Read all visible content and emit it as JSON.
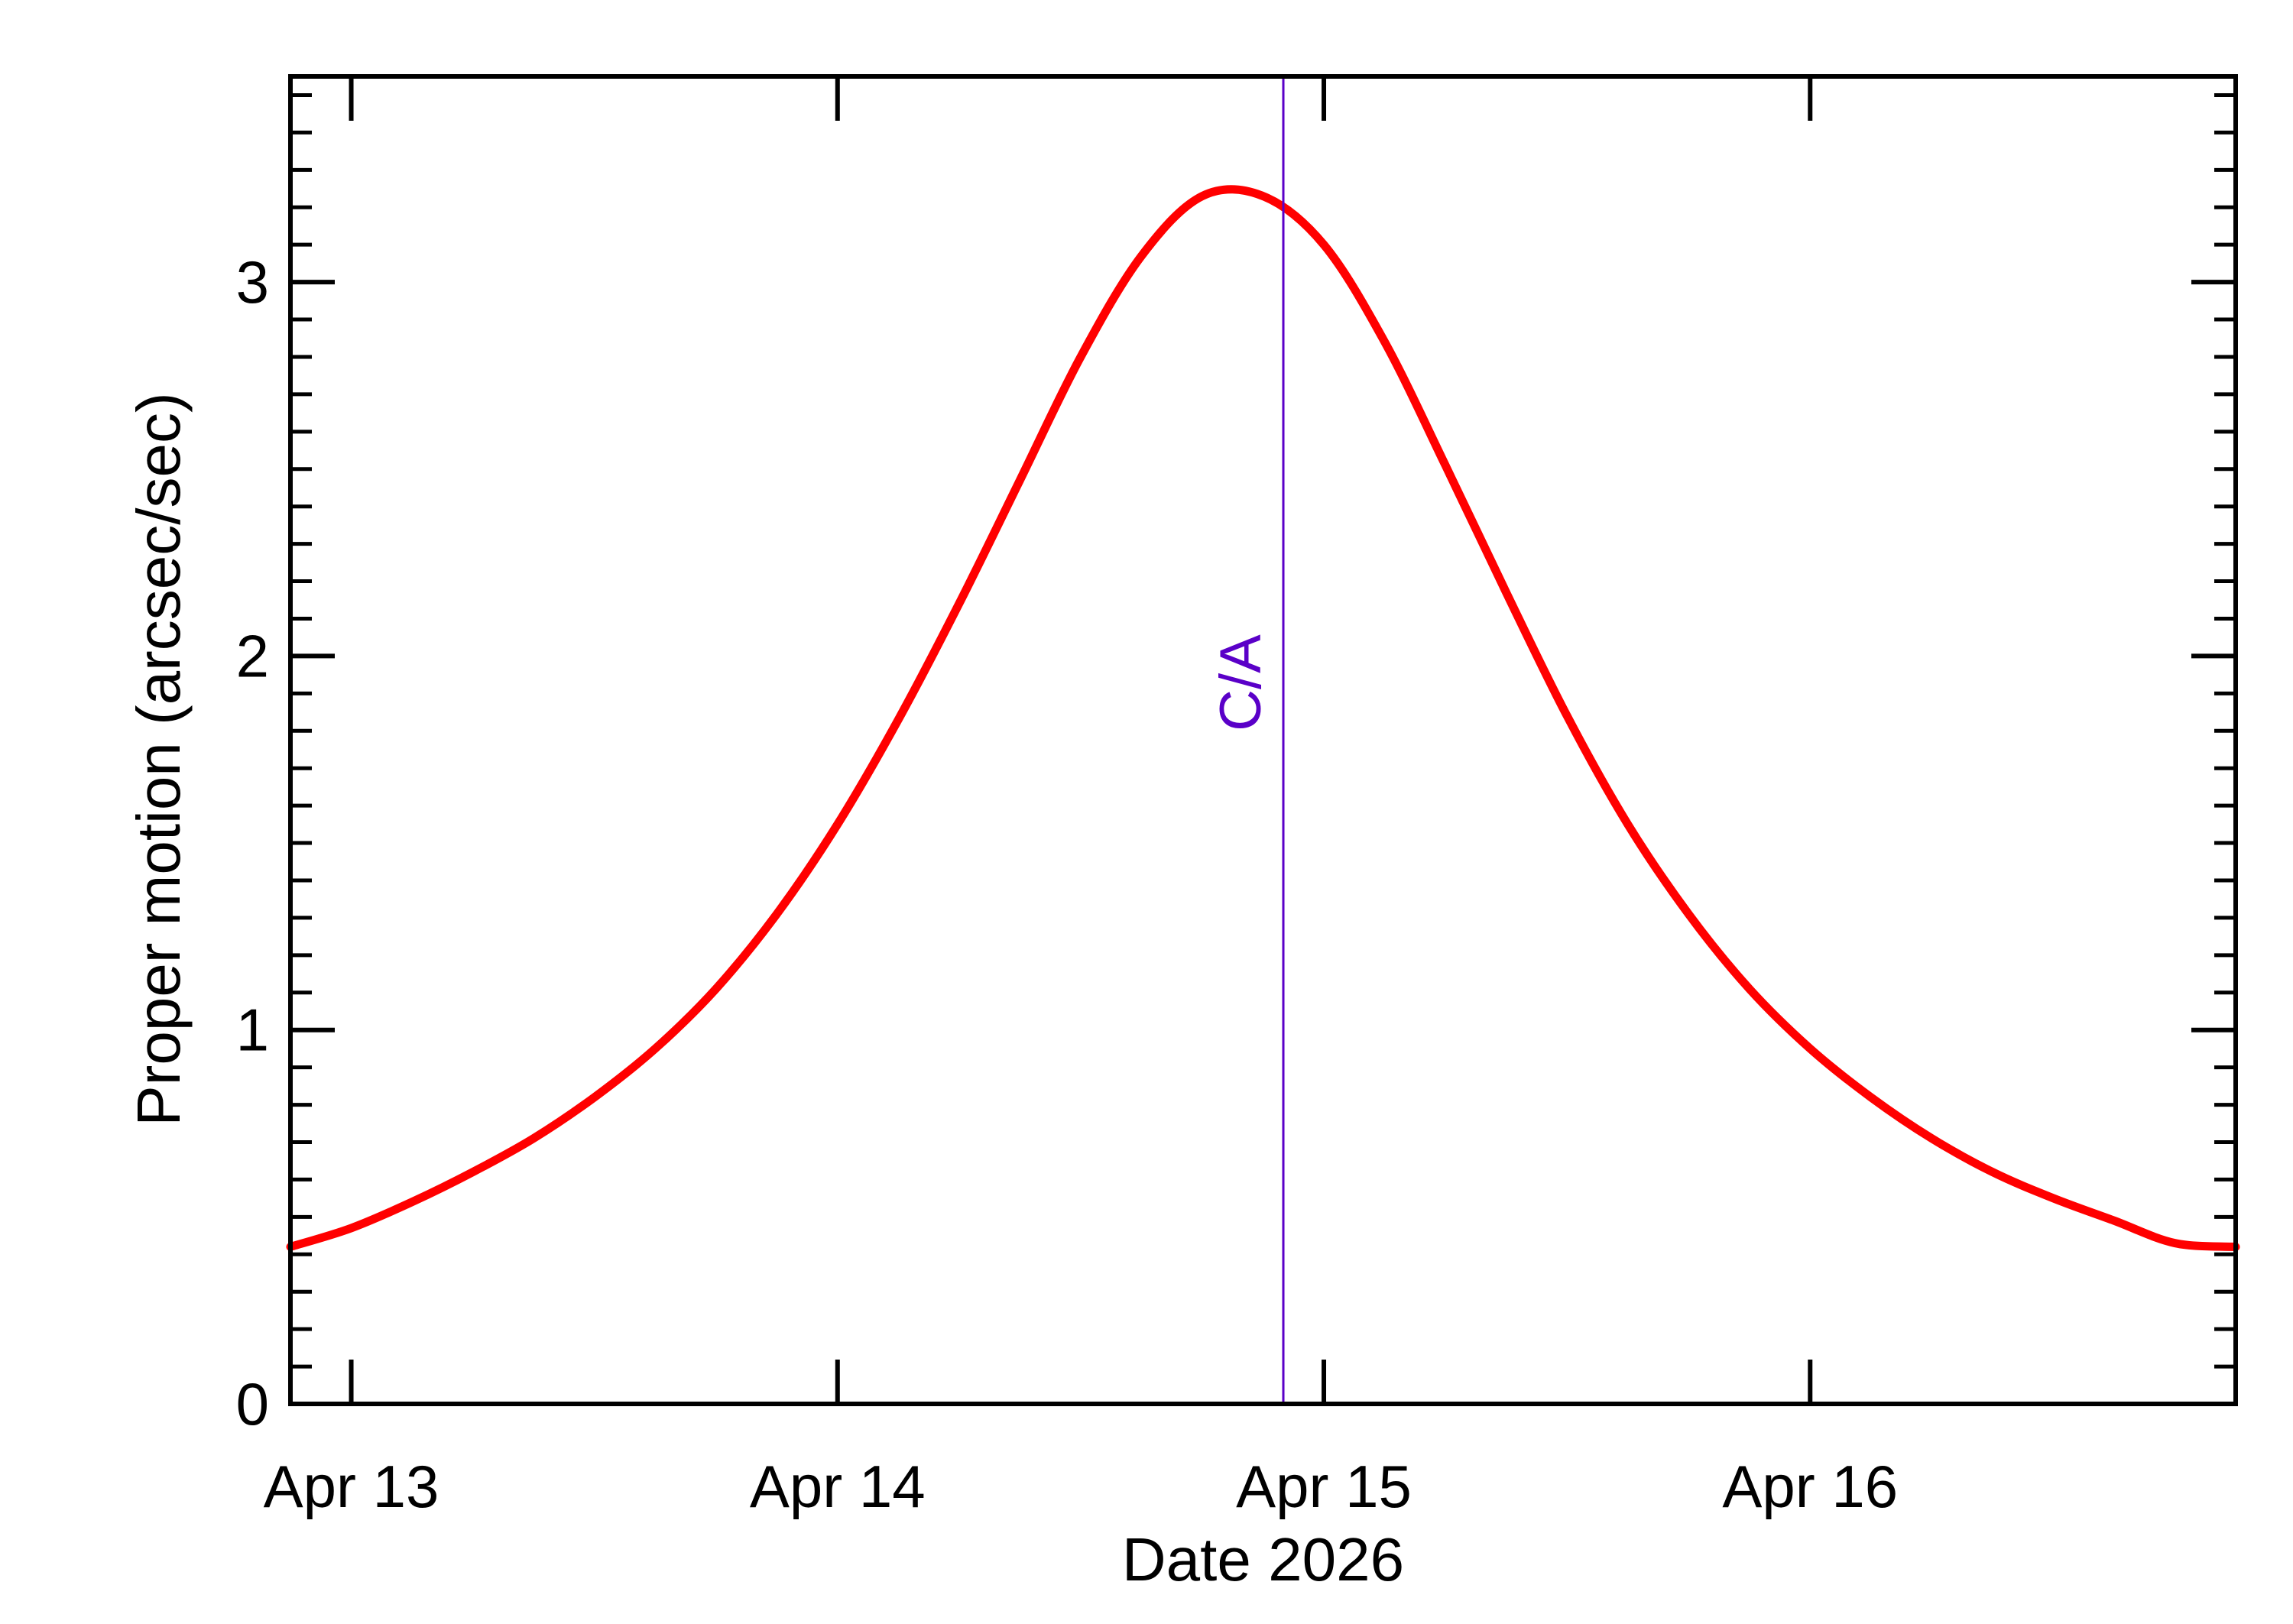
{
  "chart_data": {
    "type": "line",
    "title": "",
    "xlabel": "Date 2026",
    "ylabel": "Proper motion (arcsec/sec)",
    "x_axis": {
      "ticks": [
        {
          "x": "2026-04-13T00:00",
          "label": "Apr 13"
        },
        {
          "x": "2026-04-14T00:00",
          "label": "Apr 14"
        },
        {
          "x": "2026-04-15T00:00",
          "label": "Apr 15"
        },
        {
          "x": "2026-04-16T00:00",
          "label": "Apr 16"
        }
      ],
      "range": [
        "2026-04-12T21:00",
        "2026-04-16T21:00"
      ],
      "minor_ticks_per_day": 0
    },
    "y_axis": {
      "ticks": [
        0,
        1,
        2,
        3
      ],
      "tick_labels": [
        "0",
        "1",
        "2",
        "3"
      ],
      "range": [
        0,
        3.55
      ],
      "minor_step": 0.1
    },
    "grid": false,
    "legend": "none",
    "colors": {
      "curve": "#ff0000",
      "closest_approach": "#5a00c8",
      "frame": "#000000"
    },
    "series": [
      {
        "x": [
          "2026-04-12T21:00",
          "2026-04-13T00:00",
          "2026-04-13T03:00",
          "2026-04-13T06:00",
          "2026-04-13T09:00",
          "2026-04-13T12:00",
          "2026-04-13T15:00",
          "2026-04-13T18:00",
          "2026-04-13T21:00",
          "2026-04-14T00:00",
          "2026-04-14T03:00",
          "2026-04-14T06:00",
          "2026-04-14T09:00",
          "2026-04-14T12:00",
          "2026-04-14T15:00",
          "2026-04-14T18:00",
          "2026-04-14T21:00",
          "2026-04-15T00:00",
          "2026-04-15T03:00",
          "2026-04-15T06:00",
          "2026-04-15T09:00",
          "2026-04-15T12:00",
          "2026-04-15T15:00",
          "2026-04-15T18:00",
          "2026-04-15T21:00",
          "2026-04-16T00:00",
          "2026-04-16T03:00",
          "2026-04-16T06:00",
          "2026-04-16T09:00",
          "2026-04-16T12:00",
          "2026-04-16T15:00",
          "2026-04-16T18:00",
          "2026-04-16T21:00"
        ],
        "y": [
          0.42,
          0.47,
          0.54,
          0.62,
          0.71,
          0.82,
          0.95,
          1.11,
          1.31,
          1.55,
          1.83,
          2.14,
          2.47,
          2.8,
          3.07,
          3.23,
          3.23,
          3.1,
          2.84,
          2.51,
          2.17,
          1.84,
          1.55,
          1.31,
          1.11,
          0.95,
          0.82,
          0.71,
          0.62,
          0.55,
          0.49,
          0.43,
          0.42
        ]
      }
    ],
    "annotations": [
      {
        "type": "vline",
        "x": "2026-04-14T22:00",
        "label": "C/A"
      }
    ]
  }
}
